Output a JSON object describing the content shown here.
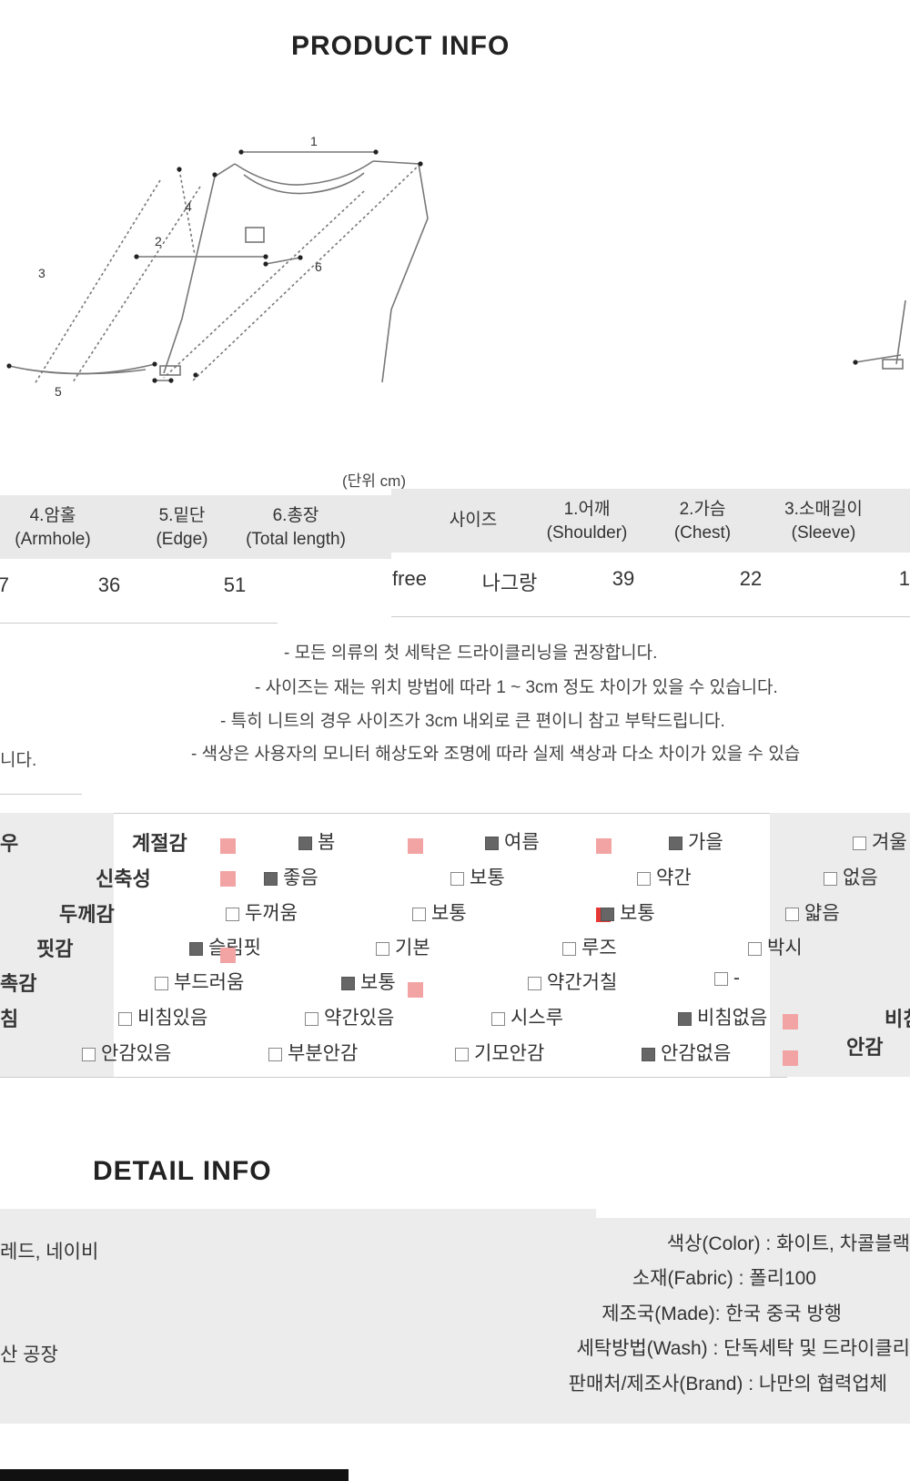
{
  "product_info_title": "PRODUCT INFO",
  "diagram_numbers": [
    "1",
    "2",
    "3",
    "4",
    "5",
    "6"
  ],
  "unit_label": "(단위 cm)",
  "size_table_left": {
    "headers": [
      {
        "ko": "4.암홀",
        "en": "(Armhole)"
      },
      {
        "ko": "5.밑단",
        "en": "(Edge)"
      },
      {
        "ko": "6.총장",
        "en": "(Total length)"
      }
    ],
    "leading_value": "7",
    "values": [
      "36",
      "51"
    ]
  },
  "size_table_right": {
    "headers": [
      {
        "ko": "사이즈",
        "en": ""
      },
      {
        "ko": "1.어깨",
        "en": "(Shoulder)"
      },
      {
        "ko": "2.가슴",
        "en": "(Chest)"
      },
      {
        "ko": "3.소매길이",
        "en": "(Sleeve)"
      }
    ],
    "values": [
      "free",
      "나그랑",
      "39",
      "22"
    ],
    "trailing_value": "1"
  },
  "notes": [
    "- 모든 의류의 첫 세탁은 드라이클리닝을 권장합니다.",
    "- 사이즈는 재는 위치 방법에 따라 1 ~ 3cm 정도 차이가 있을 수 있습니다.",
    "- 특히 니트의 경우 사이즈가 3cm 내외로 큰 편이니 참고 부탁드립니다.",
    "- 색상은 사용자의 모니터 해상도와 조명에 따라 실제 색상과 다소 차이가 있을 수 있습",
    "니다."
  ],
  "feel_table": {
    "left_partial_label": "",
    "rows": [
      {
        "label": "계절감",
        "options": [
          "봄",
          "여름",
          "가을",
          "겨"
        ],
        "checked": [
          0,
          1,
          2
        ]
      },
      {
        "label": "신축성",
        "options": [
          "좋음",
          "보통",
          "약간",
          "없음"
        ],
        "checked": [
          0
        ]
      },
      {
        "label": "두께감",
        "options": [
          "두꺼움",
          "보통",
          "보통",
          "얇음"
        ],
        "checked": []
      },
      {
        "label": "핏감",
        "options": [
          "슬림핏",
          "기본",
          "루즈",
          "박시"
        ],
        "checked": [
          0
        ]
      },
      {
        "label": "촉감",
        "options": [
          "부드러움",
          "보통",
          "약간거칠",
          "-"
        ],
        "checked": [
          1
        ]
      },
      {
        "label": "비침",
        "options": [
          "비침있음",
          "약간있음",
          "시스루",
          "비침없음"
        ],
        "checked": [
          3
        ]
      },
      {
        "label": "안감",
        "options": [
          "안감있음",
          "부분안감",
          "기모안감",
          "안감없음"
        ],
        "checked": [
          3
        ]
      }
    ],
    "left_labels": [
      "절감",
      "축성",
      "께감",
      "핏감",
      "촉감",
      "침",
      "감"
    ],
    "right_labels": [
      "겨울",
      "",
      "",
      "",
      "",
      "비침",
      "안감"
    ],
    "first_col_partial": "우"
  },
  "detail_info_title": "DETAIL INFO",
  "detail": [
    {
      "label": "색상(Color) : ",
      "value": "화이트, 차콜블랙"
    },
    {
      "label": "소재(Fabric) : ",
      "value": "폴리100"
    },
    {
      "label": "제조국(Made): ",
      "value": "한국 중국 방행"
    },
    {
      "label": "세탁방법(Wash) : ",
      "value": "단독세탁 및 드라이클리"
    },
    {
      "label": "판매처/제조사(Brand) : ",
      "value": "나만의 협력업체"
    }
  ],
  "detail_left": [
    "레드, 네이비",
    "산 공장"
  ]
}
